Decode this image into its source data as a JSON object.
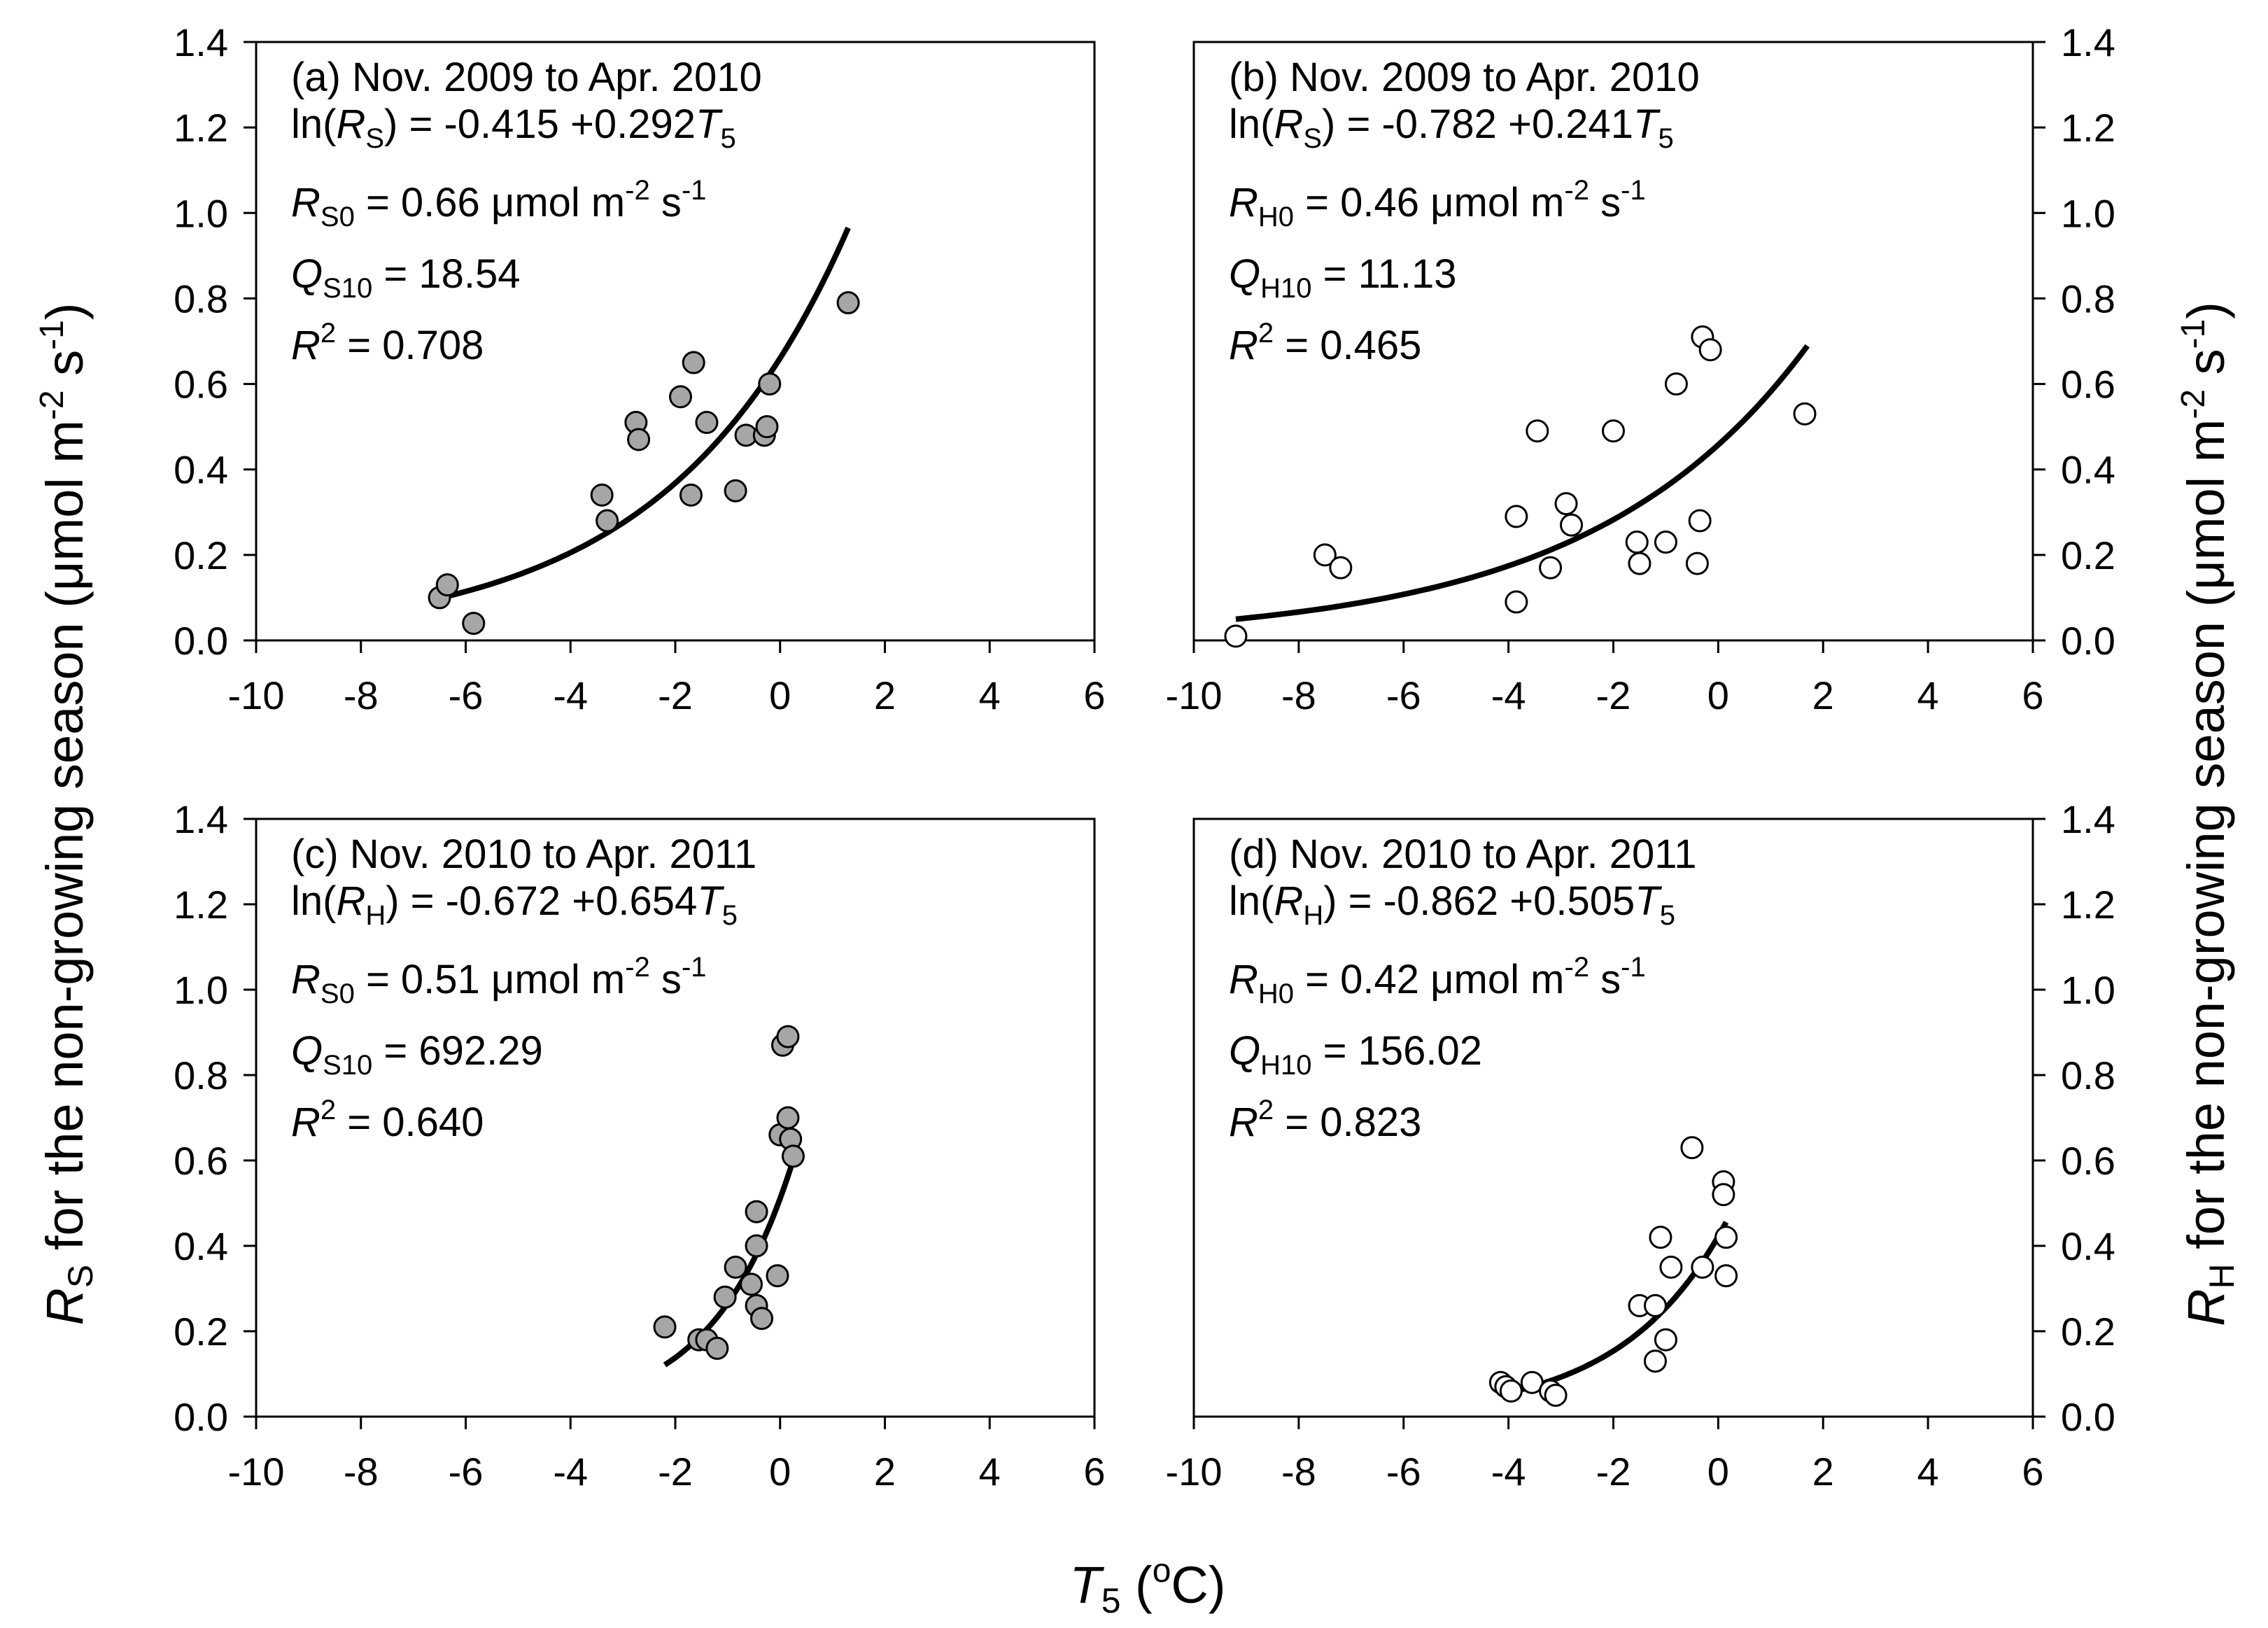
{
  "figure": {
    "y_label_left": {
      "main": "R",
      "sub": "S",
      "rest": " for the non-growing season (μmol m",
      "sup1": "-2",
      "mid": " s",
      "sup2": "-1",
      "end": ")"
    },
    "y_label_right": {
      "main": "R",
      "sub": "H",
      "rest": " for the non-growing season (μmol m",
      "sup1": "-2",
      "mid": " s",
      "sup2": "-1",
      "end": ")"
    },
    "x_label": {
      "main": "T",
      "sub": "5",
      "open": " (",
      "sup": "o",
      "unit": "C)"
    }
  },
  "chart_data": [
    {
      "type": "scatter",
      "panel": "a",
      "marker": "filled",
      "marker_color": "#a6a6a6",
      "xlim": [
        -10,
        6
      ],
      "ylim": [
        0,
        1.4
      ],
      "xticks": [
        "-10",
        "-8",
        "-6",
        "-4",
        "-2",
        "0",
        "2",
        "4",
        "6"
      ],
      "yticks": [
        "0.0",
        "0.2",
        "0.4",
        "0.6",
        "0.8",
        "1.0",
        "1.2",
        "1.4"
      ],
      "y_tick_side": "left",
      "fit": {
        "a": -0.415,
        "b": 0.292,
        "x_from": -6.5,
        "x_to": 1.3
      },
      "points": [
        [
          -6.5,
          0.1
        ],
        [
          -6.35,
          0.13
        ],
        [
          -5.85,
          0.04
        ],
        [
          -3.4,
          0.34
        ],
        [
          -3.3,
          0.28
        ],
        [
          -2.75,
          0.51
        ],
        [
          -2.7,
          0.47
        ],
        [
          -1.9,
          0.57
        ],
        [
          -1.65,
          0.65
        ],
        [
          -1.7,
          0.34
        ],
        [
          -1.4,
          0.51
        ],
        [
          -0.85,
          0.35
        ],
        [
          -0.65,
          0.48
        ],
        [
          -0.3,
          0.48
        ],
        [
          -0.25,
          0.5
        ],
        [
          -0.2,
          0.6
        ],
        [
          1.3,
          0.79
        ]
      ],
      "annotations": {
        "title": "(a) Nov. 2009 to Apr. 2010",
        "eq_prefix": "ln(",
        "eq_var": "R",
        "eq_sub": "S",
        "eq_mid": ") = -0.415 +0.292",
        "eq_tvar": "T",
        "eq_tsub": "5",
        "r0_var": "R",
        "r0_sub": "S0",
        "r0_val": " = 0.66 μmol m",
        "r0_sup1": "-2",
        "r0_mid": " s",
        "r0_sup2": "-1",
        "q10_var": "Q",
        "q10_sub": "S10",
        "q10_val": " = 18.54",
        "r2_var": "R",
        "r2_sup": "2",
        "r2_val": " = 0.708"
      }
    },
    {
      "type": "scatter",
      "panel": "b",
      "marker": "open",
      "marker_color": "#ffffff",
      "xlim": [
        -10,
        6
      ],
      "ylim": [
        0,
        1.4
      ],
      "xticks": [
        "-10",
        "-8",
        "-6",
        "-4",
        "-2",
        "0",
        "2",
        "4",
        "6"
      ],
      "yticks": [
        "0.0",
        "0.2",
        "0.4",
        "0.6",
        "0.8",
        "1.0",
        "1.2",
        "1.4"
      ],
      "y_tick_side": "right",
      "fit": {
        "a": -0.782,
        "b": 0.241,
        "x_from": -9.2,
        "x_to": 1.7
      },
      "points": [
        [
          -9.2,
          0.01
        ],
        [
          -7.5,
          0.2
        ],
        [
          -7.2,
          0.17
        ],
        [
          -3.85,
          0.29
        ],
        [
          -3.85,
          0.09
        ],
        [
          -3.45,
          0.49
        ],
        [
          -3.2,
          0.17
        ],
        [
          -2.9,
          0.32
        ],
        [
          -2.8,
          0.27
        ],
        [
          -2.0,
          0.49
        ],
        [
          -1.55,
          0.23
        ],
        [
          -1.5,
          0.18
        ],
        [
          -1.0,
          0.23
        ],
        [
          -0.8,
          0.6
        ],
        [
          -0.4,
          0.18
        ],
        [
          -0.35,
          0.28
        ],
        [
          -0.3,
          0.71
        ],
        [
          -0.15,
          0.68
        ],
        [
          1.65,
          0.53
        ]
      ],
      "annotations": {
        "title": "(b) Nov. 2009 to Apr. 2010",
        "eq_prefix": "ln(",
        "eq_var": "R",
        "eq_sub": "S",
        "eq_mid": ") = -0.782 +0.241",
        "eq_tvar": "T",
        "eq_tsub": "5",
        "r0_var": "R",
        "r0_sub": "H0",
        "r0_val": " = 0.46 μmol m",
        "r0_sup1": "-2",
        "r0_mid": " s",
        "r0_sup2": "-1",
        "q10_var": "Q",
        "q10_sub": "H10",
        "q10_val": " = 11.13",
        "r2_var": "R",
        "r2_sup": "2",
        "r2_val": " = 0.465"
      }
    },
    {
      "type": "scatter",
      "panel": "c",
      "marker": "filled",
      "marker_color": "#a6a6a6",
      "xlim": [
        -10,
        6
      ],
      "ylim": [
        0,
        1.4
      ],
      "xticks": [
        "-10",
        "-8",
        "-6",
        "-4",
        "-2",
        "0",
        "2",
        "4",
        "6"
      ],
      "yticks": [
        "0.0",
        "0.2",
        "0.4",
        "0.6",
        "0.8",
        "1.0",
        "1.2",
        "1.4"
      ],
      "y_tick_side": "left",
      "fit": {
        "a": -0.672,
        "b": 0.654,
        "x_from": -2.2,
        "x_to": 0.25
      },
      "points": [
        [
          -2.2,
          0.21
        ],
        [
          -1.55,
          0.18
        ],
        [
          -1.4,
          0.18
        ],
        [
          -1.2,
          0.16
        ],
        [
          -1.05,
          0.28
        ],
        [
          -0.85,
          0.35
        ],
        [
          -0.55,
          0.31
        ],
        [
          -0.45,
          0.48
        ],
        [
          -0.45,
          0.4
        ],
        [
          -0.45,
          0.26
        ],
        [
          -0.35,
          0.23
        ],
        [
          -0.05,
          0.33
        ],
        [
          0.0,
          0.66
        ],
        [
          0.05,
          0.87
        ],
        [
          0.15,
          0.89
        ],
        [
          0.15,
          0.7
        ],
        [
          0.2,
          0.65
        ],
        [
          0.25,
          0.61
        ]
      ],
      "annotations": {
        "title": "(c) Nov. 2010 to Apr. 2011",
        "eq_prefix": "ln(",
        "eq_var": "R",
        "eq_sub": "H",
        "eq_mid": ") = -0.672 +0.654",
        "eq_tvar": "T",
        "eq_tsub": "5",
        "r0_var": "R",
        "r0_sub": "S0",
        "r0_val": " = 0.51 μmol m",
        "r0_sup1": "-2",
        "r0_mid": " s",
        "r0_sup2": "-1",
        "q10_var": "Q",
        "q10_sub": "S10",
        "q10_val": " = 692.29",
        "r2_var": "R",
        "r2_sup": "2",
        "r2_val": " = 0.640"
      }
    },
    {
      "type": "scatter",
      "panel": "d",
      "marker": "open",
      "marker_color": "#ffffff",
      "xlim": [
        -10,
        6
      ],
      "ylim": [
        0,
        1.4
      ],
      "xticks": [
        "-10",
        "-8",
        "-6",
        "-4",
        "-2",
        "0",
        "2",
        "4",
        "6"
      ],
      "yticks": [
        "0.0",
        "0.2",
        "0.4",
        "0.6",
        "0.8",
        "1.0",
        "1.2",
        "1.4"
      ],
      "y_tick_side": "right",
      "fit": {
        "a": -0.862,
        "b": 0.505,
        "x_from": -4.0,
        "x_to": 0.15
      },
      "points": [
        [
          -4.15,
          0.08
        ],
        [
          -4.05,
          0.07
        ],
        [
          -3.95,
          0.06
        ],
        [
          -3.55,
          0.08
        ],
        [
          -3.2,
          0.06
        ],
        [
          -3.1,
          0.05
        ],
        [
          -1.5,
          0.26
        ],
        [
          -1.2,
          0.26
        ],
        [
          -1.2,
          0.13
        ],
        [
          -1.1,
          0.42
        ],
        [
          -1.0,
          0.18
        ],
        [
          -0.9,
          0.35
        ],
        [
          -0.5,
          0.63
        ],
        [
          -0.3,
          0.35
        ],
        [
          0.1,
          0.55
        ],
        [
          0.1,
          0.52
        ],
        [
          0.15,
          0.42
        ],
        [
          0.15,
          0.33
        ]
      ],
      "annotations": {
        "title": "(d) Nov. 2010 to Apr. 2011",
        "eq_prefix": "ln(",
        "eq_var": "R",
        "eq_sub": "H",
        "eq_mid": ") = -0.862 +0.505",
        "eq_tvar": "T",
        "eq_tsub": "5",
        "r0_var": "R",
        "r0_sub": "H0",
        "r0_val": " = 0.42 μmol m",
        "r0_sup1": "-2",
        "r0_mid": " s",
        "r0_sup2": "-1",
        "q10_var": "Q",
        "q10_sub": "H10",
        "q10_val": " = 156.02",
        "r2_var": "R",
        "r2_sup": "2",
        "r2_val": " = 0.823"
      }
    }
  ]
}
